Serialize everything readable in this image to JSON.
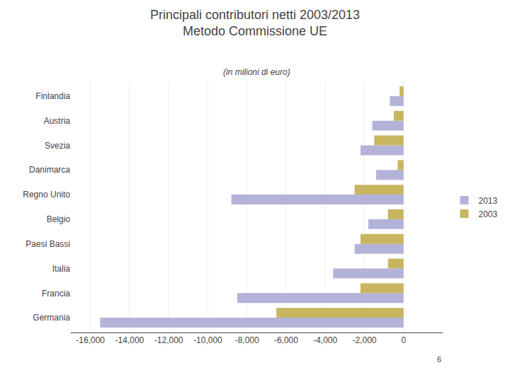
{
  "chart_data": {
    "type": "bar",
    "orientation": "horizontal",
    "title": "Principali contributori netti 2003/2013\nMetodo Commissione UE",
    "subtitle": "(in milioni di euro)",
    "categories": [
      "Germania",
      "Francia",
      "Italia",
      "Paesi Bassi",
      "Belgio",
      "Regno Unito",
      "Danimarca",
      "Svezia",
      "Austria",
      "Finlandia"
    ],
    "series": [
      {
        "name": "2013",
        "color": "#b3b3d9",
        "values": [
          -15500,
          -8500,
          -3600,
          -2500,
          -1800,
          -8800,
          -1400,
          -2200,
          -1600,
          -700
        ]
      },
      {
        "name": "2003",
        "color": "#c8b560",
        "values": [
          -6500,
          -2200,
          -800,
          -2200,
          -800,
          -2500,
          -300,
          -1500,
          -500,
          -200
        ]
      }
    ],
    "xlim": [
      -17000,
      2000
    ],
    "xticks": [
      {
        "value": -16000,
        "label": "-16,000"
      },
      {
        "value": -14000,
        "label": "-14,000"
      },
      {
        "value": -12000,
        "label": "-12,000"
      },
      {
        "value": -10000,
        "label": "-10,000"
      },
      {
        "value": -8000,
        "label": "-8,000"
      },
      {
        "value": -6000,
        "label": "-6,000"
      },
      {
        "value": -4000,
        "label": "-4,000"
      },
      {
        "value": -2000,
        "label": "-2,000"
      },
      0
    ],
    "grid": true,
    "legend": "right",
    "annotations": [
      "6"
    ]
  }
}
